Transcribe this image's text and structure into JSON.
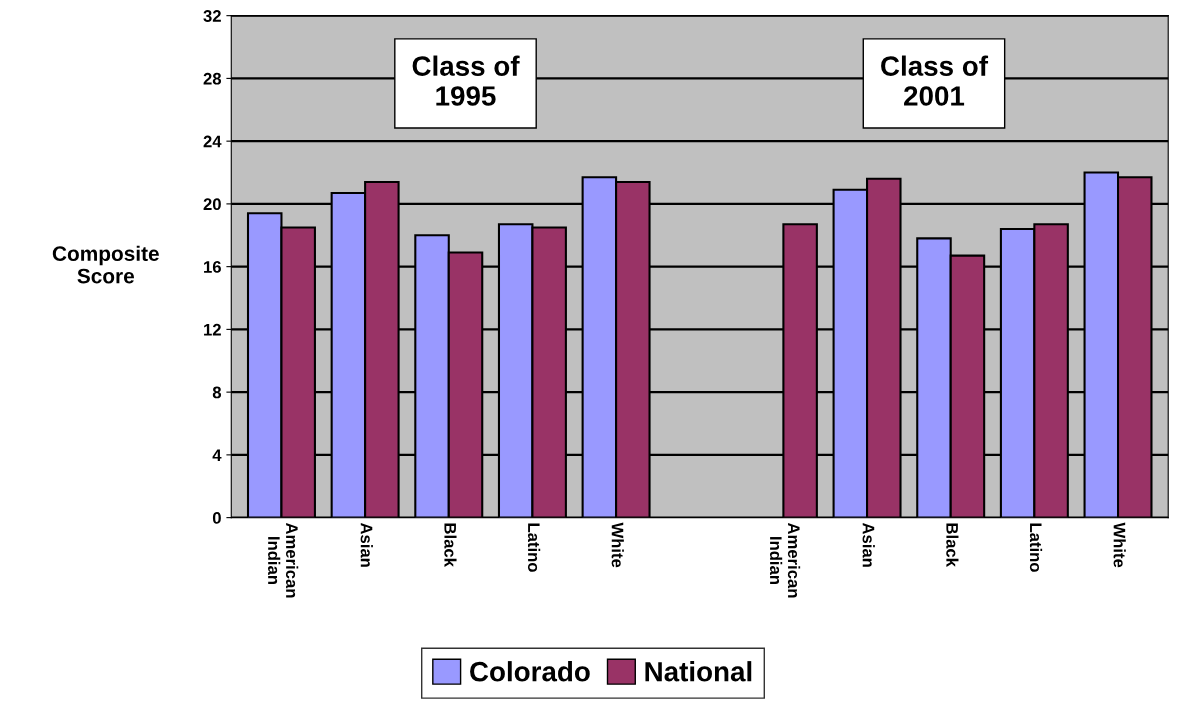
{
  "chart_data": {
    "type": "bar",
    "ylabel": "Composite\nScore",
    "categories": [
      "American\nIndian",
      "Asian",
      "Black",
      "Latino",
      "White",
      null,
      "American\nIndian",
      "Asian",
      "Black",
      "Latino",
      "White"
    ],
    "series": [
      {
        "name": "Colorado",
        "color": "#9999ff",
        "values": [
          19.4,
          20.7,
          18.0,
          18.7,
          21.7,
          null,
          null,
          20.9,
          17.8,
          18.4,
          22.0
        ]
      },
      {
        "name": "National",
        "color": "#993366",
        "values": [
          18.5,
          21.4,
          16.9,
          18.5,
          21.4,
          null,
          18.7,
          21.6,
          16.7,
          18.7,
          21.7
        ]
      }
    ],
    "annotations": [
      "Class of\n1995",
      "Class of\n2001"
    ],
    "ylim": [
      0,
      32
    ],
    "yticks": [
      0,
      4,
      8,
      12,
      16,
      20,
      24,
      28,
      32
    ],
    "grid": "y",
    "legend": "bottom"
  }
}
